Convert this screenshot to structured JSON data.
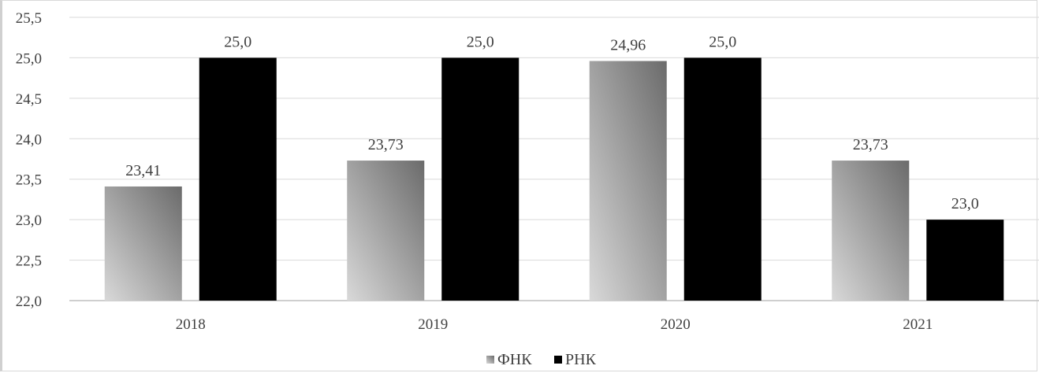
{
  "chart_data": {
    "type": "bar",
    "categories": [
      "2018",
      "2019",
      "2020",
      "2021"
    ],
    "series": [
      {
        "name": "ФНК",
        "values": [
          23.41,
          23.73,
          24.96,
          23.73
        ],
        "labels": [
          "23,41",
          "23,73",
          "24,96",
          "23,73"
        ]
      },
      {
        "name": "РНК",
        "values": [
          25.0,
          25.0,
          25.0,
          23.0
        ],
        "labels": [
          "25,0",
          "25,0",
          "25,0",
          "23,0"
        ]
      }
    ],
    "ylim": [
      22.0,
      25.5
    ],
    "yticks": [
      "22,0",
      "22,5",
      "23,0",
      "23,5",
      "24,0",
      "24,5",
      "25,0",
      "25,5"
    ],
    "ytick_values": [
      22.0,
      22.5,
      23.0,
      23.5,
      24.0,
      24.5,
      25.0,
      25.5
    ],
    "grid": true,
    "legend_position": "bottom",
    "colors": {
      "series1_light": "#d9d9d9",
      "series1_dark": "#6b6b6b",
      "series2": "#000000",
      "grid": "#d9d9d9"
    }
  }
}
